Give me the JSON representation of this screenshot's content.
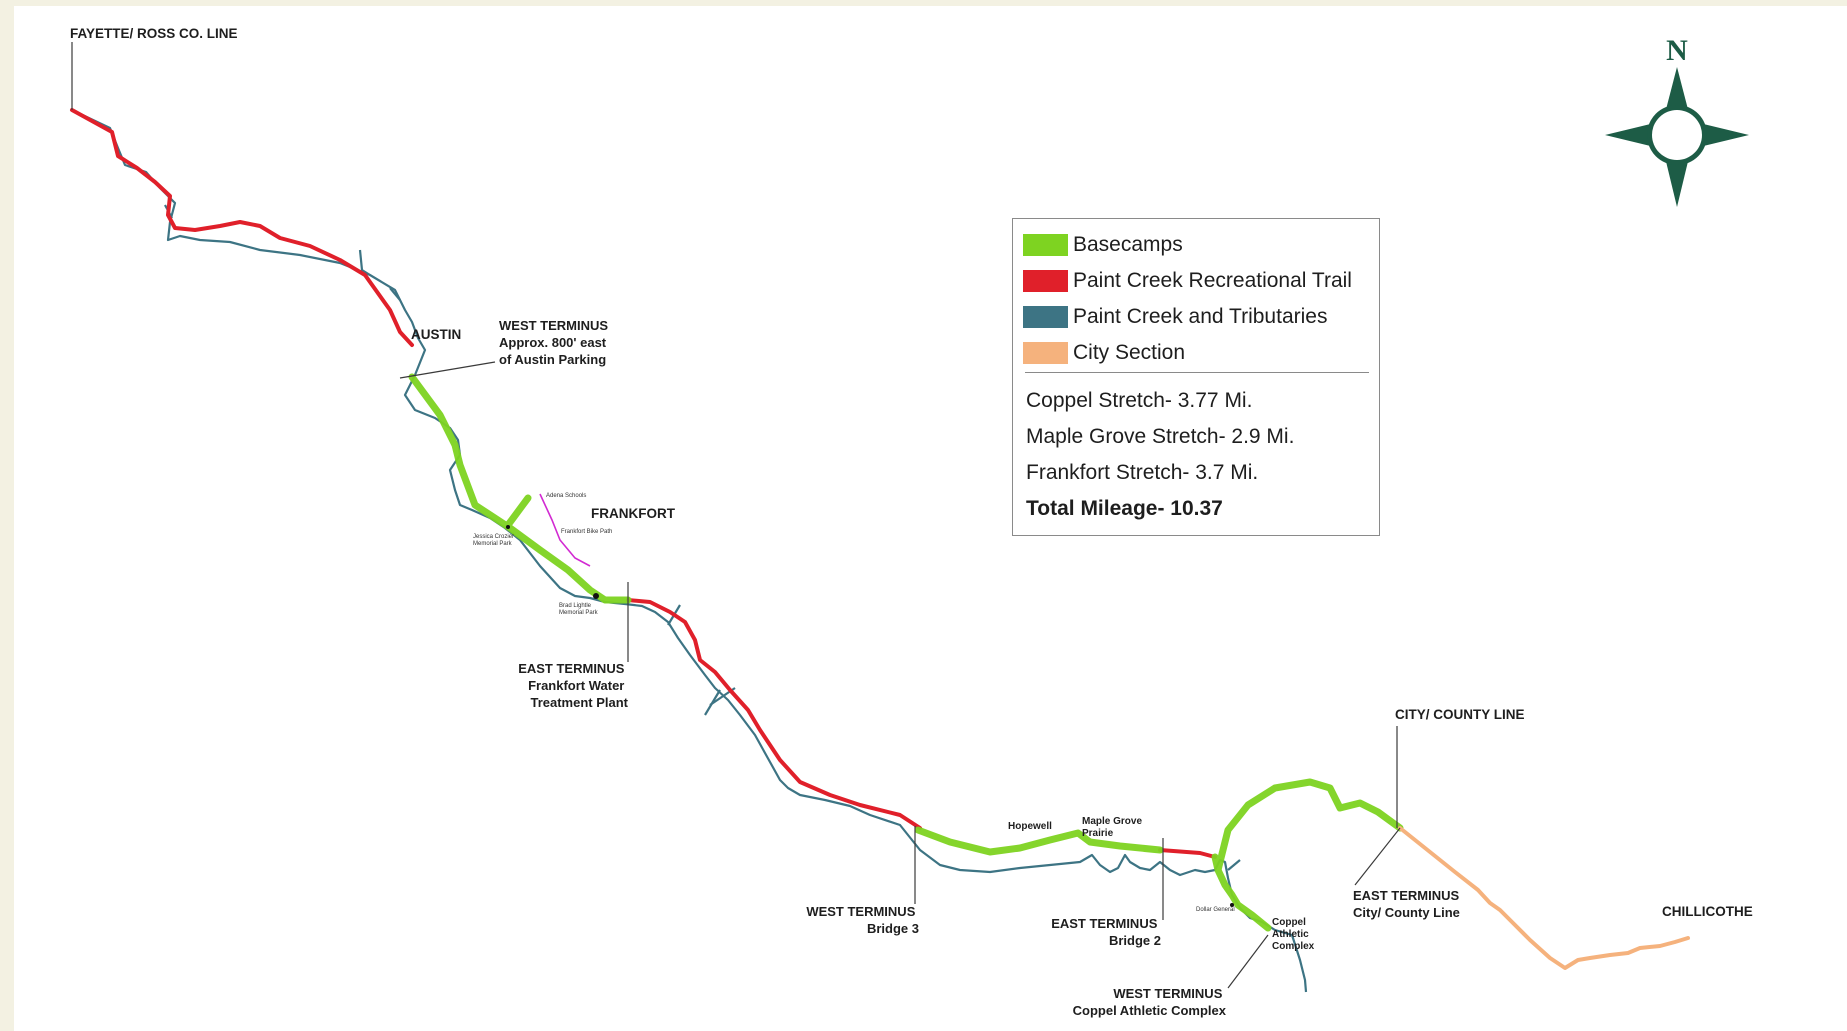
{
  "colors": {
    "background": "#f3f1e2",
    "basecamps": "#7ed321",
    "trail": "#e0202a",
    "creek": "#3d7484",
    "city": "#f5b27d",
    "compass": "#1d5c46",
    "bike_path": "#d22ad2"
  },
  "compass": {
    "north_label": "N"
  },
  "legend": {
    "items": [
      {
        "label": "Basecamps",
        "color": "#7ed321"
      },
      {
        "label": "Paint Creek Recreational Trail",
        "color": "#e0202a"
      },
      {
        "label": "Paint Creek and Tributaries",
        "color": "#3d7484"
      },
      {
        "label": "City Section",
        "color": "#f5b27d"
      }
    ],
    "stretches": [
      "Coppel Stretch- 3.77 Mi.",
      "Maple Grove Stretch- 2.9 Mi.",
      "Frankfort Stretch- 3.7 Mi."
    ],
    "total": "Total Mileage- 10.37"
  },
  "labels": {
    "fayette_line": "FAYETTE/ ROSS CO. LINE",
    "austin": "AUSTIN",
    "west_terminus_austin": [
      "WEST TERMINUS",
      "Approx. 800' east",
      "of Austin Parking"
    ],
    "frankfort": "FRANKFORT",
    "adena_schools": "Adena Schools",
    "frankfort_bike_path": "Frankfort Bike Path",
    "jessica_park": [
      "Jessica Crozier",
      "Memorial Park"
    ],
    "brad_park": [
      "Brad Lightle",
      "Memorial Park"
    ],
    "east_terminus_frankfort": [
      "EAST TERMINUS",
      "Frankfort Water",
      "Treatment Plant"
    ],
    "west_terminus_bridge3": [
      "WEST TERMINUS",
      "Bridge 3"
    ],
    "hopewell": "Hopewell",
    "maple_grove": [
      "Maple Grove",
      "Prairie"
    ],
    "east_terminus_bridge2": [
      "EAST TERMINUS",
      "Bridge 2"
    ],
    "dollar_general": "Dollar General",
    "coppel_complex": [
      "Coppel",
      "Athletic",
      "Complex"
    ],
    "west_terminus_coppel": [
      "WEST TERMINUS",
      "Coppel Athletic Complex"
    ],
    "city_county_line": "CITY/ COUNTY LINE",
    "east_terminus_city": [
      "EAST TERMINUS",
      "City/ County Line"
    ],
    "chillicothe": "CHILLICOTHE"
  }
}
